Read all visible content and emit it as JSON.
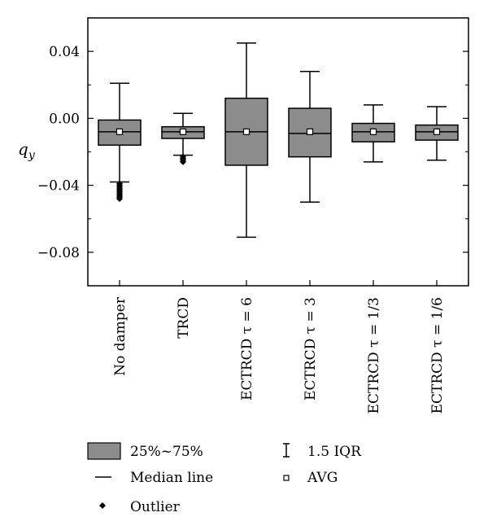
{
  "chart_data": {
    "type": "box",
    "ylabel": "q",
    "ylabel_subscript": "y",
    "ylim": [
      -0.1,
      0.06
    ],
    "yticks": [
      0.04,
      0.0,
      -0.04,
      -0.08
    ],
    "ytick_labels": [
      "0.04",
      "0.00",
      "−0.04",
      "−0.08"
    ],
    "categories": [
      "No damper",
      "TRCD",
      "ECTRCD τ = 6",
      "ECTRCD τ = 3",
      "ECTRCD τ = 1/3",
      "ECTRCD τ = 1/6"
    ],
    "boxes": [
      {
        "whisker_low": -0.038,
        "q1": -0.016,
        "median": -0.008,
        "q3": -0.001,
        "whisker_high": 0.021,
        "mean": -0.008,
        "outliers": [
          -0.039,
          -0.04,
          -0.041,
          -0.042,
          -0.043,
          -0.044,
          -0.045,
          -0.046,
          -0.047,
          -0.048
        ]
      },
      {
        "whisker_low": -0.022,
        "q1": -0.012,
        "median": -0.008,
        "q3": -0.005,
        "whisker_high": 0.003,
        "mean": -0.008,
        "outliers": [
          -0.023,
          -0.024,
          -0.025,
          -0.026
        ]
      },
      {
        "whisker_low": -0.071,
        "q1": -0.028,
        "median": -0.008,
        "q3": 0.012,
        "whisker_high": 0.045,
        "mean": -0.008,
        "outliers": []
      },
      {
        "whisker_low": -0.05,
        "q1": -0.023,
        "median": -0.009,
        "q3": 0.006,
        "whisker_high": 0.028,
        "mean": -0.008,
        "outliers": []
      },
      {
        "whisker_low": -0.026,
        "q1": -0.014,
        "median": -0.008,
        "q3": -0.003,
        "whisker_high": 0.008,
        "mean": -0.008,
        "outliers": []
      },
      {
        "whisker_low": -0.025,
        "q1": -0.013,
        "median": -0.008,
        "q3": -0.004,
        "whisker_high": 0.007,
        "mean": -0.008,
        "outliers": []
      }
    ],
    "legend": {
      "box": "25%~75%",
      "median": "Median line",
      "outlier": "Outlier",
      "whisker": "1.5 IQR",
      "mean": "AVG"
    },
    "colors": {
      "box_fill": "#8c8c8c",
      "stroke": "#000000"
    }
  }
}
